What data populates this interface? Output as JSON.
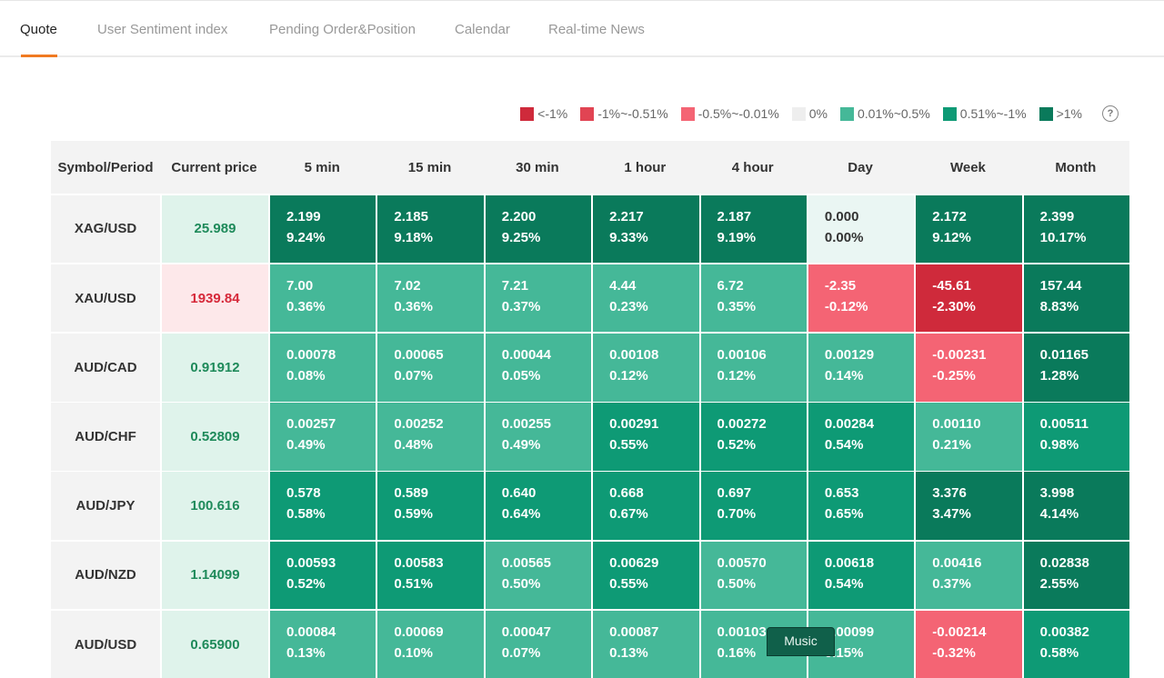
{
  "tabs": [
    {
      "label": "Quote"
    },
    {
      "label": "User Sentiment index"
    },
    {
      "label": "Pending Order&Position"
    },
    {
      "label": "Calendar"
    },
    {
      "label": "Real-time News"
    }
  ],
  "legend": [
    {
      "label": "<-1%",
      "color": "#cf2a3b"
    },
    {
      "label": "-1%~-0.51%",
      "color": "#e14453"
    },
    {
      "label": "-0.5%~-0.01%",
      "color": "#f46474"
    },
    {
      "label": "0%",
      "color": "#eeeeee"
    },
    {
      "label": "0.01%~0.5%",
      "color": "#45b898"
    },
    {
      "label": "0.51%~-1%",
      "color": "#0e9a75"
    },
    {
      "label": ">1%",
      "color": "#0a7a5b"
    }
  ],
  "help_label": "?",
  "table": {
    "headers": [
      "Symbol/Period",
      "Current price",
      "5 min",
      "15 min",
      "30 min",
      "1 hour",
      "4 hour",
      "Day",
      "Week",
      "Month"
    ],
    "rows": [
      {
        "symbol": "XAG/USD",
        "price": "25.989",
        "dir": "up",
        "cells": [
          [
            "2.199",
            "9.24%",
            "g3"
          ],
          [
            "2.185",
            "9.18%",
            "g3"
          ],
          [
            "2.200",
            "9.25%",
            "g3"
          ],
          [
            "2.217",
            "9.33%",
            "g3"
          ],
          [
            "2.187",
            "9.19%",
            "g3"
          ],
          [
            "0.000",
            "0.00%",
            "z"
          ],
          [
            "2.172",
            "9.12%",
            "g3"
          ],
          [
            "2.399",
            "10.17%",
            "g3"
          ]
        ]
      },
      {
        "symbol": "XAU/USD",
        "price": "1939.84",
        "dir": "down",
        "cells": [
          [
            "7.00",
            "0.36%",
            "g1"
          ],
          [
            "7.02",
            "0.36%",
            "g1"
          ],
          [
            "7.21",
            "0.37%",
            "g1"
          ],
          [
            "4.44",
            "0.23%",
            "g1"
          ],
          [
            "6.72",
            "0.35%",
            "g1"
          ],
          [
            "-2.35",
            "-0.12%",
            "r1"
          ],
          [
            "-45.61",
            "-2.30%",
            "r3"
          ],
          [
            "157.44",
            "8.83%",
            "g3"
          ]
        ]
      },
      {
        "symbol": "AUD/CAD",
        "price": "0.91912",
        "dir": "up",
        "cells": [
          [
            "0.00078",
            "0.08%",
            "g1"
          ],
          [
            "0.00065",
            "0.07%",
            "g1"
          ],
          [
            "0.00044",
            "0.05%",
            "g1"
          ],
          [
            "0.00108",
            "0.12%",
            "g1"
          ],
          [
            "0.00106",
            "0.12%",
            "g1"
          ],
          [
            "0.00129",
            "0.14%",
            "g1"
          ],
          [
            "-0.00231",
            "-0.25%",
            "r1"
          ],
          [
            "0.01165",
            "1.28%",
            "g3"
          ]
        ]
      },
      {
        "symbol": "AUD/CHF",
        "price": "0.52809",
        "dir": "up",
        "cells": [
          [
            "0.00257",
            "0.49%",
            "g1"
          ],
          [
            "0.00252",
            "0.48%",
            "g1"
          ],
          [
            "0.00255",
            "0.49%",
            "g1"
          ],
          [
            "0.00291",
            "0.55%",
            "g2"
          ],
          [
            "0.00272",
            "0.52%",
            "g2"
          ],
          [
            "0.00284",
            "0.54%",
            "g2"
          ],
          [
            "0.00110",
            "0.21%",
            "g1"
          ],
          [
            "0.00511",
            "0.98%",
            "g2"
          ]
        ]
      },
      {
        "symbol": "AUD/JPY",
        "price": "100.616",
        "dir": "up",
        "cells": [
          [
            "0.578",
            "0.58%",
            "g2"
          ],
          [
            "0.589",
            "0.59%",
            "g2"
          ],
          [
            "0.640",
            "0.64%",
            "g2"
          ],
          [
            "0.668",
            "0.67%",
            "g2"
          ],
          [
            "0.697",
            "0.70%",
            "g2"
          ],
          [
            "0.653",
            "0.65%",
            "g2"
          ],
          [
            "3.376",
            "3.47%",
            "g3"
          ],
          [
            "3.998",
            "4.14%",
            "g3"
          ]
        ]
      },
      {
        "symbol": "AUD/NZD",
        "price": "1.14099",
        "dir": "up",
        "cells": [
          [
            "0.00593",
            "0.52%",
            "g2"
          ],
          [
            "0.00583",
            "0.51%",
            "g2"
          ],
          [
            "0.00565",
            "0.50%",
            "g1"
          ],
          [
            "0.00629",
            "0.55%",
            "g2"
          ],
          [
            "0.00570",
            "0.50%",
            "g1"
          ],
          [
            "0.00618",
            "0.54%",
            "g2"
          ],
          [
            "0.00416",
            "0.37%",
            "g1"
          ],
          [
            "0.02838",
            "2.55%",
            "g3"
          ]
        ]
      },
      {
        "symbol": "AUD/USD",
        "price": "0.65900",
        "dir": "up",
        "cells": [
          [
            "0.00084",
            "0.13%",
            "g1"
          ],
          [
            "0.00069",
            "0.10%",
            "g1"
          ],
          [
            "0.00047",
            "0.07%",
            "g1"
          ],
          [
            "0.00087",
            "0.13%",
            "g1"
          ],
          [
            "0.00103",
            "0.16%",
            "g1"
          ],
          [
            "0.00099",
            "0.15%",
            "g1"
          ],
          [
            "-0.00214",
            "-0.32%",
            "r1"
          ],
          [
            "0.00382",
            "0.58%",
            "g2"
          ]
        ]
      }
    ]
  },
  "music_label": "Music"
}
